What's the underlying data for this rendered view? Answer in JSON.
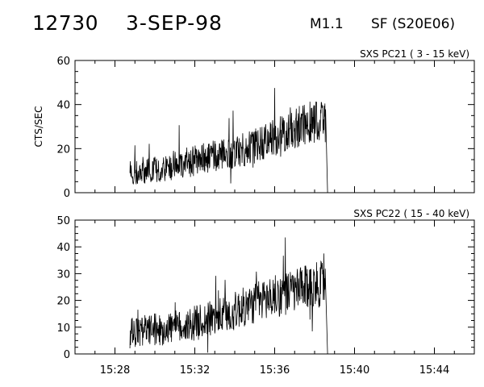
{
  "header": {
    "event_id": "12730",
    "date": "3-SEP-98",
    "goes_class": "M1.1",
    "flare_info": "SF (S20E06)"
  },
  "chart_data": [
    {
      "type": "line",
      "title": "SXS PC21  (  3 - 15 keV)",
      "ylabel": "CTS/SEC",
      "xlabel": "",
      "xlim": [
        "15:26",
        "15:46"
      ],
      "ylim": [
        0,
        60
      ],
      "yticks": [
        0,
        20,
        40,
        60
      ],
      "xticks": [
        "15:28",
        "15:32",
        "15:36",
        "15:40",
        "15:44"
      ],
      "show_xtick_labels": false,
      "grid": false,
      "series": [
        {
          "x": [
            "15:28:45",
            "15:29:15",
            "15:29:45",
            "15:30:15",
            "15:30:45",
            "15:31:15",
            "15:31:45",
            "15:32:15",
            "15:32:45",
            "15:33:15",
            "15:33:45",
            "15:34:15",
            "15:34:45",
            "15:35:15",
            "15:35:45",
            "15:36:15",
            "15:36:45",
            "15:37:15",
            "15:37:45",
            "15:38:15",
            "15:38:33",
            "15:38:39"
          ],
          "y": [
            9,
            10,
            10,
            11,
            12,
            13,
            14,
            15,
            16,
            17,
            18,
            19,
            21,
            22,
            24,
            26,
            28,
            30,
            32,
            33,
            31,
            0
          ]
        }
      ]
    },
    {
      "type": "line",
      "title": "SXS PC22  ( 15 - 40 keV)",
      "ylabel": "",
      "xlabel": "",
      "xlim": [
        "15:26",
        "15:46"
      ],
      "ylim": [
        0,
        50
      ],
      "yticks": [
        0,
        10,
        20,
        30,
        40,
        50
      ],
      "xticks": [
        "15:28",
        "15:32",
        "15:36",
        "15:40",
        "15:44"
      ],
      "show_xtick_labels": true,
      "grid": false,
      "series": [
        {
          "x": [
            "15:28:45",
            "15:29:15",
            "15:29:45",
            "15:30:15",
            "15:30:45",
            "15:31:15",
            "15:31:45",
            "15:32:15",
            "15:32:45",
            "15:33:15",
            "15:33:45",
            "15:34:15",
            "15:34:45",
            "15:35:15",
            "15:35:45",
            "15:36:15",
            "15:36:45",
            "15:37:15",
            "15:37:45",
            "15:38:15",
            "15:38:33",
            "15:38:39"
          ],
          "y": [
            8,
            8,
            9,
            9,
            10,
            10,
            11,
            12,
            13,
            14,
            15,
            17,
            18,
            20,
            21,
            22,
            23,
            24,
            25,
            26,
            26,
            0
          ]
        }
      ]
    }
  ]
}
